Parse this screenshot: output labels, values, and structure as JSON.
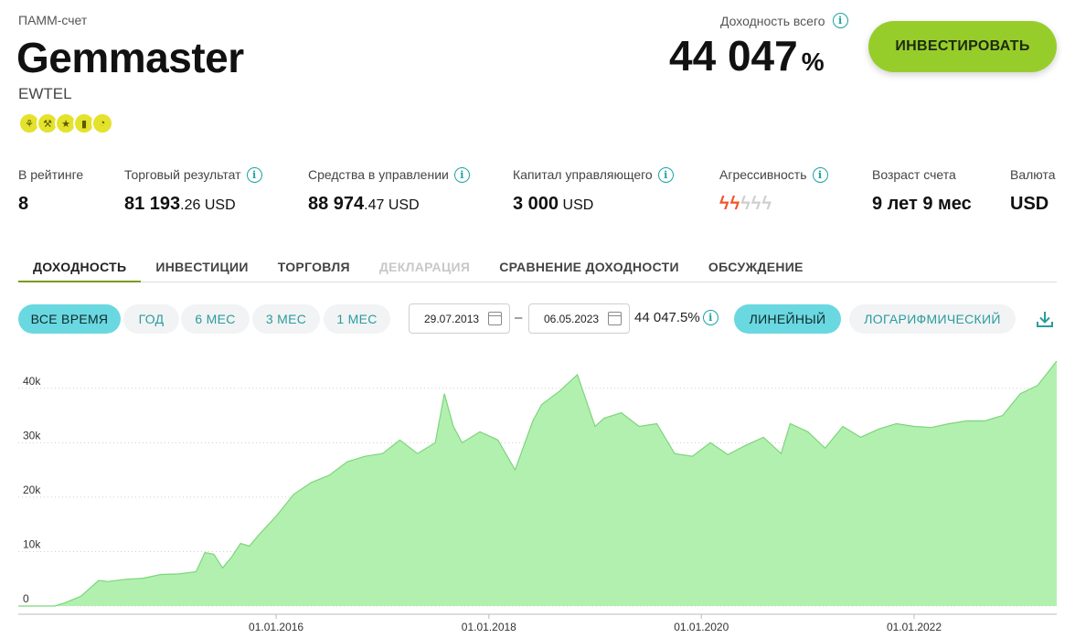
{
  "header": {
    "account_type": "ПАММ-счет",
    "account_name": "Gemmaster",
    "account_sub": "EWTEL",
    "total_label": "Доходность всего",
    "total_value": "44 047",
    "total_unit": "%",
    "invest_label": "ИНВЕСТИРОВАТЬ",
    "badge_icons": [
      "runner-icon",
      "scooter-icon",
      "star-icon",
      "signal-icon",
      "speedometer-icon"
    ],
    "badge_color": "#e4e22c"
  },
  "stats": [
    {
      "label": "В рейтинге",
      "value_main": "8",
      "value_small": ""
    },
    {
      "label": "Торговый результат",
      "value_main": "81 193",
      "value_small": ".26 USD"
    },
    {
      "label": "Средства в управлении",
      "value_main": "88 974",
      "value_small": ".47 USD"
    },
    {
      "label": "Капитал управляющего",
      "value_main": "3 000",
      "value_small": " USD"
    },
    {
      "label": "Агрессивность",
      "level": 2,
      "max": 5
    },
    {
      "label": "Возраст счета",
      "value_main": "9 лет 9 мес",
      "value_small": ""
    },
    {
      "label": "Валюта",
      "value_main": "USD",
      "value_small": ""
    }
  ],
  "tabs": [
    {
      "label": "ДОХОДНОСТЬ",
      "state": "active"
    },
    {
      "label": "ИНВЕСТИЦИИ",
      "state": "normal"
    },
    {
      "label": "ТОРГОВЛЯ",
      "state": "normal"
    },
    {
      "label": "ДЕКЛАРАЦИЯ",
      "state": "disabled"
    },
    {
      "label": "СРАВНЕНИЕ ДОХОДНОСТИ",
      "state": "normal"
    },
    {
      "label": "ОБСУЖДЕНИЕ",
      "state": "normal"
    }
  ],
  "periods": [
    {
      "label": "ВСЕ ВРЕМЯ",
      "active": true
    },
    {
      "label": "ГОД",
      "active": false
    },
    {
      "label": "6 МЕС",
      "active": false
    },
    {
      "label": "3 МЕС",
      "active": false
    },
    {
      "label": "1 МЕС",
      "active": false
    }
  ],
  "date_from": "29.07.2013",
  "date_to": "06.05.2023",
  "date_separator": "–",
  "range_value": "44 047.5%",
  "scales": [
    {
      "label": "ЛИНЕЙНЫЙ",
      "active": true
    },
    {
      "label": "ЛОГАРИФМИЧЕСКИЙ",
      "active": false
    }
  ],
  "colors": {
    "accent_teal": "#6ad8e0",
    "link_teal": "#2a9c9c",
    "invest_green": "#97cd2b",
    "chart_fill": "#b2f0b0",
    "chart_line": "#7cd67a",
    "bolt_active": "#f2542d",
    "bolt_inactive": "#cfcfcf"
  },
  "chart_data": {
    "type": "area",
    "title": "",
    "xlabel": "",
    "ylabel": "",
    "ylim": [
      0,
      45000
    ],
    "yticks": [
      0,
      10000,
      20000,
      30000,
      40000
    ],
    "ytick_labels": [
      "0",
      "10k",
      "20k",
      "30k",
      "40k"
    ],
    "xlim": [
      "2013-07-29",
      "2023-05-06"
    ],
    "xticks": [
      "2016-01-01",
      "2018-01-01",
      "2020-01-01",
      "2022-01-01"
    ],
    "xtick_labels": [
      "01.01.2016",
      "01.01.2018",
      "01.01.2020",
      "01.01.2022"
    ],
    "grid": true,
    "series": [
      {
        "x": [
          "2013-07-29",
          "2013-12-01",
          "2014-01-01",
          "2014-03-01",
          "2014-05-01",
          "2014-06-01",
          "2014-08-01",
          "2014-10-01",
          "2014-12-01",
          "2015-02-01",
          "2015-04-01",
          "2015-05-01",
          "2015-06-01",
          "2015-07-01",
          "2015-08-01",
          "2015-09-01",
          "2015-10-01",
          "2015-11-01",
          "2016-01-01",
          "2016-03-01",
          "2016-05-01",
          "2016-07-01",
          "2016-09-01",
          "2016-11-01",
          "2017-01-01",
          "2017-03-01",
          "2017-05-01",
          "2017-07-01",
          "2017-08-01",
          "2017-09-01",
          "2017-10-01",
          "2017-12-01",
          "2018-02-01",
          "2018-04-01",
          "2018-06-01",
          "2018-07-01",
          "2018-09-01",
          "2018-11-01",
          "2019-01-01",
          "2019-02-01",
          "2019-04-01",
          "2019-06-01",
          "2019-08-01",
          "2019-10-01",
          "2019-12-01",
          "2020-02-01",
          "2020-04-01",
          "2020-06-01",
          "2020-08-01",
          "2020-10-01",
          "2020-11-01",
          "2021-01-01",
          "2021-03-01",
          "2021-05-01",
          "2021-07-01",
          "2021-09-01",
          "2021-11-01",
          "2022-01-01",
          "2022-03-01",
          "2022-05-01",
          "2022-07-01",
          "2022-09-01",
          "2022-11-01",
          "2023-01-01",
          "2023-03-01",
          "2023-05-06"
        ],
        "y": [
          0,
          0,
          500,
          1800,
          4700,
          4500,
          4900,
          5100,
          5800,
          5900,
          6300,
          9800,
          9500,
          7000,
          9000,
          11500,
          11000,
          13000,
          16500,
          20500,
          22700,
          24000,
          26500,
          27500,
          28000,
          30500,
          28000,
          30000,
          39000,
          33000,
          30000,
          32000,
          30500,
          25000,
          34000,
          37000,
          39500,
          42500,
          33000,
          34500,
          35500,
          33000,
          33500,
          28000,
          27500,
          30000,
          27800,
          29500,
          31000,
          28000,
          33500,
          32000,
          29000,
          33000,
          31000,
          32500,
          33500,
          33000,
          32800,
          33500,
          34000,
          34000,
          35000,
          39000,
          40500,
          45000
        ]
      }
    ]
  }
}
